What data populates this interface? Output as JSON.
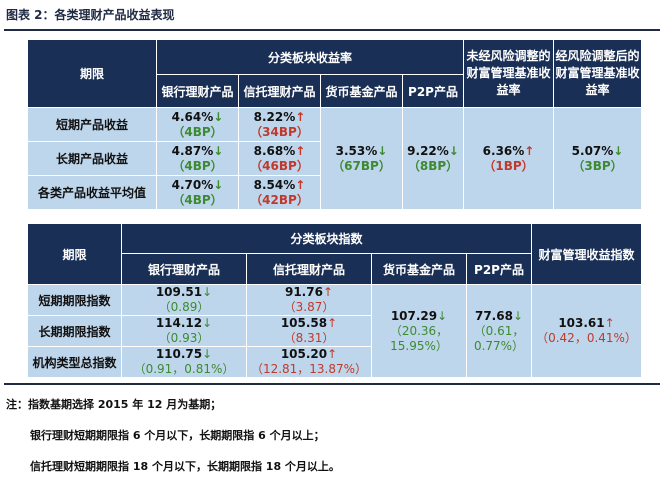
{
  "title": "图表 2：各类理财产品收益表现",
  "table1": {
    "period_header": "期限",
    "group_header": "分类板块收益率",
    "cols": [
      "银行理财产品",
      "信托理财产品",
      "货币基金产品",
      "P2P产品"
    ],
    "col_unadjusted": "未经风险调整的财富管理基准收益率",
    "col_adjusted": "经风险调整后的财富管理基准收益率",
    "rows": [
      {
        "label": "短期产品收益",
        "bank_val": "4.64%",
        "bank_arrow": "↓",
        "bank_bp": "（4BP）",
        "trust_val": "8.22%",
        "trust_arrow": "↑",
        "trust_bp": "（34BP）"
      },
      {
        "label": "长期产品收益",
        "bank_val": "4.87%",
        "bank_arrow": "↓",
        "bank_bp": "（4BP）",
        "trust_val": "8.68%",
        "trust_arrow": "↑",
        "trust_bp": "（46BP）"
      },
      {
        "label": "各类产品收益平均值",
        "bank_val": "4.70%",
        "bank_arrow": "↓",
        "bank_bp": "（4BP）",
        "trust_val": "8.54%",
        "trust_arrow": "↑",
        "trust_bp": "（42BP）"
      }
    ],
    "money_val": "3.53%",
    "money_arrow": "↓",
    "money_bp": "（67BP）",
    "p2p_val": "9.22%",
    "p2p_arrow": "↓",
    "p2p_bp": "（8BP）",
    "unadj_val": "6.36%",
    "unadj_arrow": "↑",
    "unadj_bp": "（1BP）",
    "adj_val": "5.07%",
    "adj_arrow": "↓",
    "adj_bp": "（3BP）"
  },
  "table2": {
    "period_header": "期限",
    "group_header": "分类板块指数",
    "cols": [
      "银行理财产品",
      "信托理财产品",
      "货币基金产品",
      "P2P产品"
    ],
    "col_wealth": "财富管理收益指数",
    "rows": [
      {
        "label": "短期期限指数",
        "bank_val": "109.51",
        "bank_arrow": "↓",
        "bank_sub": "（0.89）",
        "trust_val": "91.76",
        "trust_arrow": "↑",
        "trust_sub": "（3.87）"
      },
      {
        "label": "长期期限指数",
        "bank_val": "114.12",
        "bank_arrow": "↓",
        "bank_sub": "（0.93）",
        "trust_val": "105.58",
        "trust_arrow": "↑",
        "trust_sub": "（8.31）"
      },
      {
        "label": "机构类型总指数",
        "bank_val": "110.75",
        "bank_arrow": "↓",
        "bank_sub": "（0.91，0.81%）",
        "trust_val": "105.20",
        "trust_arrow": "↑",
        "trust_sub": "（12.81，13.87%）"
      }
    ],
    "money_val": "107.29",
    "money_arrow": "↓",
    "money_sub1": "（20.36，",
    "money_sub2": "15.95%）",
    "p2p_val": "77.68",
    "p2p_arrow": "↓",
    "p2p_sub1": "（0.61，",
    "p2p_sub2": "0.77%）",
    "wealth_val": "103.61",
    "wealth_arrow": "↑",
    "wealth_sub": "（0.42，0.41%）"
  },
  "notes": [
    "注：指数基期选择 2015 年 12 月为基期；",
    "银行理财短期期限指 6 个月以下，长期期限指 6 个月以上；",
    "信托理财短期期限指 18 个月以下，长期期限指 18 个月以上。"
  ]
}
